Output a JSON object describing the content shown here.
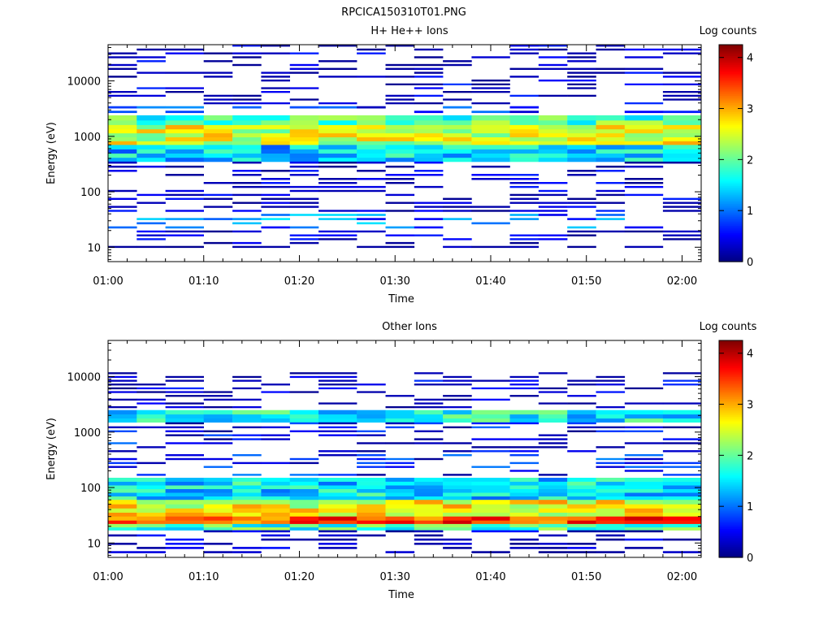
{
  "figure": {
    "title": "RPCICA150310T01.PNG"
  },
  "colorbar": {
    "label": "Log counts",
    "ticks": [
      "0",
      "1",
      "2",
      "3",
      "4"
    ],
    "range": [
      0,
      4.25
    ],
    "colormap": "jet"
  },
  "chart_data": [
    {
      "type": "heatmap",
      "title": "H+ He++ Ions",
      "xlabel": "Time",
      "ylabel": "Energy (eV)",
      "yscale": "log",
      "ylim": [
        5.5,
        45000
      ],
      "xlim": [
        "01:00",
        "02:02"
      ],
      "xticks": [
        "01:00",
        "01:10",
        "01:20",
        "01:30",
        "01:40",
        "01:50",
        "02:00"
      ],
      "yticks": [
        "10",
        "100",
        "1000",
        "10000"
      ],
      "time_bins": [
        "01:00",
        "01:03",
        "01:06",
        "01:10",
        "01:13",
        "01:16",
        "01:19",
        "01:22",
        "01:26",
        "01:29",
        "01:32",
        "01:35",
        "01:38",
        "01:42",
        "01:45",
        "01:48",
        "01:51",
        "01:54",
        "01:58"
      ],
      "energy_band_counts": [
        {
          "range": [
            9000,
            45000
          ],
          "level": 0.15
        },
        {
          "range": [
            3500,
            9000
          ],
          "level": 0.25
        },
        {
          "range": [
            2400,
            3500
          ],
          "level": 0.6
        },
        {
          "range": [
            1600,
            2400
          ],
          "level": 1.9
        },
        {
          "range": [
            700,
            1600
          ],
          "level": 2.5
        },
        {
          "range": [
            350,
            700
          ],
          "level": 1.4
        },
        {
          "range": [
            150,
            350
          ],
          "level": 0.2
        },
        {
          "range": [
            40,
            150
          ],
          "level": 0.15
        },
        {
          "range": [
            20,
            40
          ],
          "level": 1.0
        },
        {
          "range": [
            9,
            20
          ],
          "level": 0.1
        }
      ]
    },
    {
      "type": "heatmap",
      "title": "Other Ions",
      "xlabel": "Time",
      "ylabel": "Energy (eV)",
      "yscale": "log",
      "ylim": [
        5.5,
        45000
      ],
      "xlim": [
        "01:00",
        "02:02"
      ],
      "xticks": [
        "01:00",
        "01:10",
        "01:20",
        "01:30",
        "01:40",
        "01:50",
        "02:00"
      ],
      "yticks": [
        "10",
        "100",
        "1000",
        "10000"
      ],
      "time_bins": [
        "01:00",
        "01:03",
        "01:06",
        "01:10",
        "01:13",
        "01:16",
        "01:19",
        "01:22",
        "01:26",
        "01:29",
        "01:32",
        "01:35",
        "01:38",
        "01:42",
        "01:45",
        "01:48",
        "01:51",
        "01:54",
        "01:58"
      ],
      "energy_band_counts": [
        {
          "range": [
            2500,
            12000
          ],
          "level": 0.2
        },
        {
          "range": [
            1500,
            2500
          ],
          "level": 1.6
        },
        {
          "range": [
            400,
            1500
          ],
          "level": 0.5
        },
        {
          "range": [
            150,
            400
          ],
          "level": 0.6
        },
        {
          "range": [
            60,
            150
          ],
          "level": 1.5
        },
        {
          "range": [
            30,
            60
          ],
          "level": 2.6
        },
        {
          "range": [
            22,
            30
          ],
          "level": 3.4
        },
        {
          "range": [
            17,
            22
          ],
          "level": 1.8
        },
        {
          "range": [
            6,
            17
          ],
          "level": 0.1
        }
      ]
    }
  ]
}
